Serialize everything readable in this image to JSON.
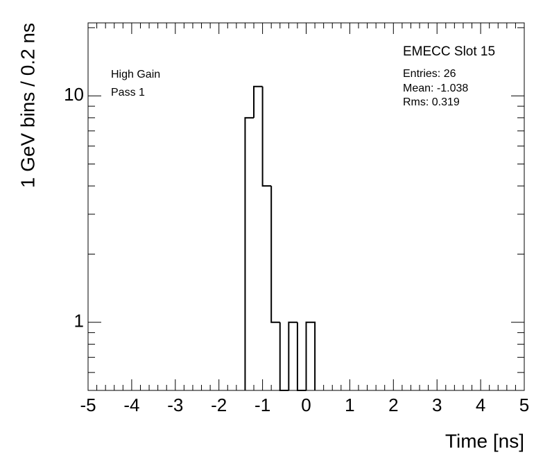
{
  "chart_data": {
    "type": "histogram",
    "title": "EMECC Slot 15",
    "stats": [
      "Entries: 26",
      "Mean: -1.038",
      "Rms: 0.319"
    ],
    "annotations": [
      "High Gain",
      "Pass 1"
    ],
    "xlabel": "Time [ns]",
    "ylabel": "1 GeV bins / 0.2 ns",
    "bins": [
      -1.4,
      -1.2,
      -1.0,
      -0.8,
      -0.6,
      -0.4,
      -0.2,
      0.0,
      0.2
    ],
    "values": [
      8,
      11,
      4,
      1,
      0,
      1,
      0,
      1
    ],
    "color": "#000000",
    "xlim": [
      -5,
      5
    ],
    "xticks": [
      -5,
      -4,
      -3,
      -2,
      -1,
      0,
      1,
      2,
      3,
      4,
      5
    ],
    "xminorticks": [
      -4.8,
      -4.6,
      -4.4,
      -4.2,
      -3.8,
      -3.6,
      -3.4,
      -3.2,
      -2.8,
      -2.6,
      -2.4,
      -2.2,
      -1.8,
      -1.6,
      -1.4,
      -1.2,
      -0.8,
      -0.6,
      -0.4,
      -0.2,
      0.2,
      0.4,
      0.6,
      0.8,
      1.2,
      1.4,
      1.6,
      1.8,
      2.2,
      2.4,
      2.6,
      2.8,
      3.2,
      3.4,
      3.6,
      3.8,
      4.2,
      4.4,
      4.6,
      4.8
    ],
    "ylim": [
      0.5,
      21
    ],
    "ylog": true,
    "yticks": [
      1,
      10
    ],
    "yminorticks": [
      0.5,
      0.6,
      0.7,
      0.8,
      0.9,
      2,
      3,
      4,
      5,
      6,
      7,
      8,
      9,
      20
    ],
    "grid": false
  }
}
